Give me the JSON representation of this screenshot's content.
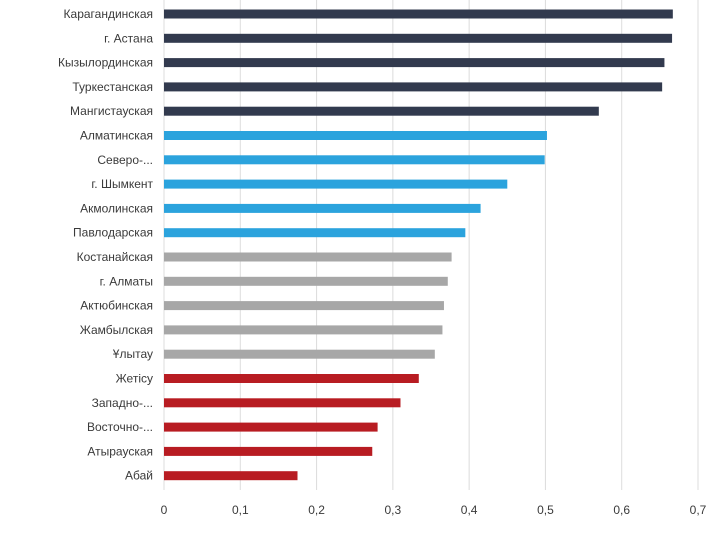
{
  "chart_data": {
    "type": "bar",
    "orientation": "horizontal",
    "title": "",
    "xlabel": "",
    "ylabel": "",
    "xlim": [
      0,
      0.7
    ],
    "grid": true,
    "legend": "none",
    "ticks": [
      {
        "value": 0,
        "label": "0"
      },
      {
        "value": 0.1,
        "label": "0,1"
      },
      {
        "value": 0.2,
        "label": "0,2"
      },
      {
        "value": 0.3,
        "label": "0,3"
      },
      {
        "value": 0.4,
        "label": "0,4"
      },
      {
        "value": 0.5,
        "label": "0,5"
      },
      {
        "value": 0.6,
        "label": "0,6"
      },
      {
        "value": 0.7,
        "label": "0,7"
      }
    ],
    "group_colors": {
      "navy": "#323a4e",
      "blue": "#2ba3dd",
      "gray": "#a7a7a7",
      "red": "#b81c22"
    },
    "categories": [
      "Карагандинская",
      "г. Астана",
      "Кызылординская",
      "Туркестанская",
      "Мангистауская",
      "Алматинская",
      "Северо-...",
      "г. Шымкент",
      "Акмолинская",
      "Павлодарская",
      "Костанайская",
      "г. Алматы",
      "Актюбинская",
      "Жамбылская",
      "Ұлытау",
      "Жетісу",
      "Западно-...",
      "Восточно-...",
      "Атырауская",
      "Абай"
    ],
    "values": [
      0.667,
      0.666,
      0.656,
      0.653,
      0.57,
      0.502,
      0.499,
      0.45,
      0.415,
      0.395,
      0.377,
      0.372,
      0.367,
      0.365,
      0.355,
      0.334,
      0.31,
      0.28,
      0.273,
      0.175
    ],
    "groups": [
      "navy",
      "navy",
      "navy",
      "navy",
      "navy",
      "blue",
      "blue",
      "blue",
      "blue",
      "blue",
      "gray",
      "gray",
      "gray",
      "gray",
      "gray",
      "red",
      "red",
      "red",
      "red",
      "red"
    ]
  }
}
